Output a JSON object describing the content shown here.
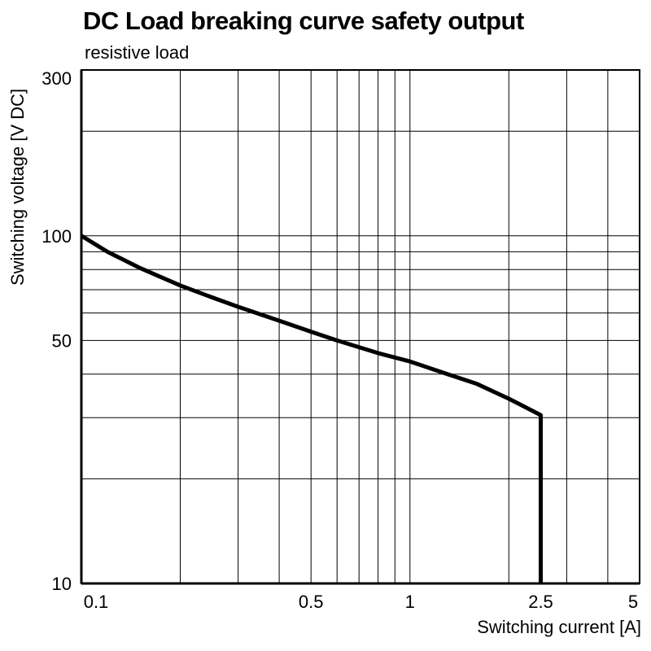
{
  "page": {
    "background": "#ffffff",
    "foreground": "#000000"
  },
  "chart_data": {
    "type": "line",
    "title": "DC Load breaking curve safety output",
    "subtitle": "resistive load",
    "xlabel": "Switching current [A]",
    "ylabel": "Switching voltage [V DC]",
    "x_scale": "log",
    "y_scale": "log",
    "xlim": [
      0.1,
      5
    ],
    "ylim": [
      10,
      300
    ],
    "grid": true,
    "legend": false,
    "line_color": "#000000",
    "line_width": 5,
    "grid_color": "#000000",
    "frame_color": "#000000",
    "x_ticks": [
      {
        "value": 0.1,
        "label": "0.1"
      },
      {
        "value": 0.5,
        "label": "0.5"
      },
      {
        "value": 1,
        "label": "1"
      },
      {
        "value": 2.5,
        "label": "2.5"
      },
      {
        "value": 5,
        "label": "5"
      }
    ],
    "y_ticks": [
      {
        "value": 10,
        "label": "10"
      },
      {
        "value": 50,
        "label": "50"
      },
      {
        "value": 100,
        "label": "100"
      },
      {
        "value": 300,
        "label": "300"
      }
    ],
    "x_gridlines": [
      0.1,
      0.2,
      0.3,
      0.4,
      0.5,
      0.6,
      0.7,
      0.8,
      0.9,
      1,
      2,
      3,
      4,
      5
    ],
    "y_gridlines": [
      10,
      20,
      30,
      40,
      50,
      60,
      70,
      80,
      90,
      100,
      200,
      300
    ],
    "series": [
      {
        "name": "DC load breaking curve, resistive load",
        "points": [
          [
            0.1,
            100
          ],
          [
            0.12,
            90
          ],
          [
            0.15,
            81
          ],
          [
            0.2,
            72
          ],
          [
            0.25,
            66.5
          ],
          [
            0.3,
            62.5
          ],
          [
            0.4,
            57
          ],
          [
            0.5,
            53
          ],
          [
            0.6,
            50
          ],
          [
            0.8,
            46
          ],
          [
            1,
            43.5
          ],
          [
            1.3,
            40
          ],
          [
            1.6,
            37.5
          ],
          [
            2,
            34
          ],
          [
            2.5,
            30.5
          ],
          [
            2.5,
            10
          ]
        ]
      }
    ]
  }
}
